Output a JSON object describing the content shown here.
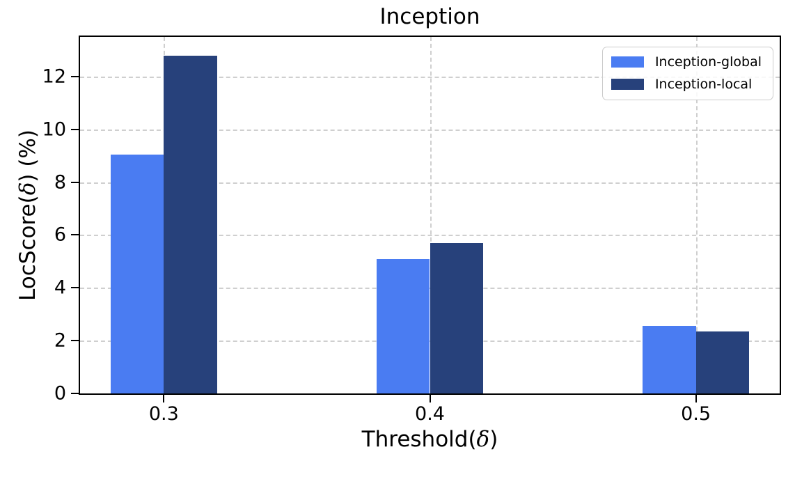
{
  "chart_data": {
    "type": "bar",
    "title": "Inception",
    "categories": [
      "0.3",
      "0.4",
      "0.5"
    ],
    "x_positions": [
      0.3,
      0.4,
      0.5
    ],
    "series": [
      {
        "name": "Inception-global",
        "color": "#4a7cf2",
        "values": [
          9.05,
          5.1,
          2.55
        ]
      },
      {
        "name": "Inception-local",
        "color": "#27417b",
        "values": [
          12.8,
          5.7,
          2.35
        ]
      }
    ],
    "xlabel": {
      "pre": "Threshold(",
      "delta": "δ",
      "post": ")"
    },
    "ylabel": {
      "pre": "LocScore(",
      "delta": "δ",
      "post": ") (%)"
    },
    "yticks": [
      0,
      2,
      4,
      6,
      8,
      10,
      12
    ],
    "ylim": [
      0,
      13.5
    ],
    "xlim": [
      0.2685,
      0.5315
    ],
    "bar_width": 0.02,
    "grid": {
      "style": "dashed",
      "color": "#cfcfcf",
      "axes": "both"
    },
    "legend_position": "upper right"
  }
}
